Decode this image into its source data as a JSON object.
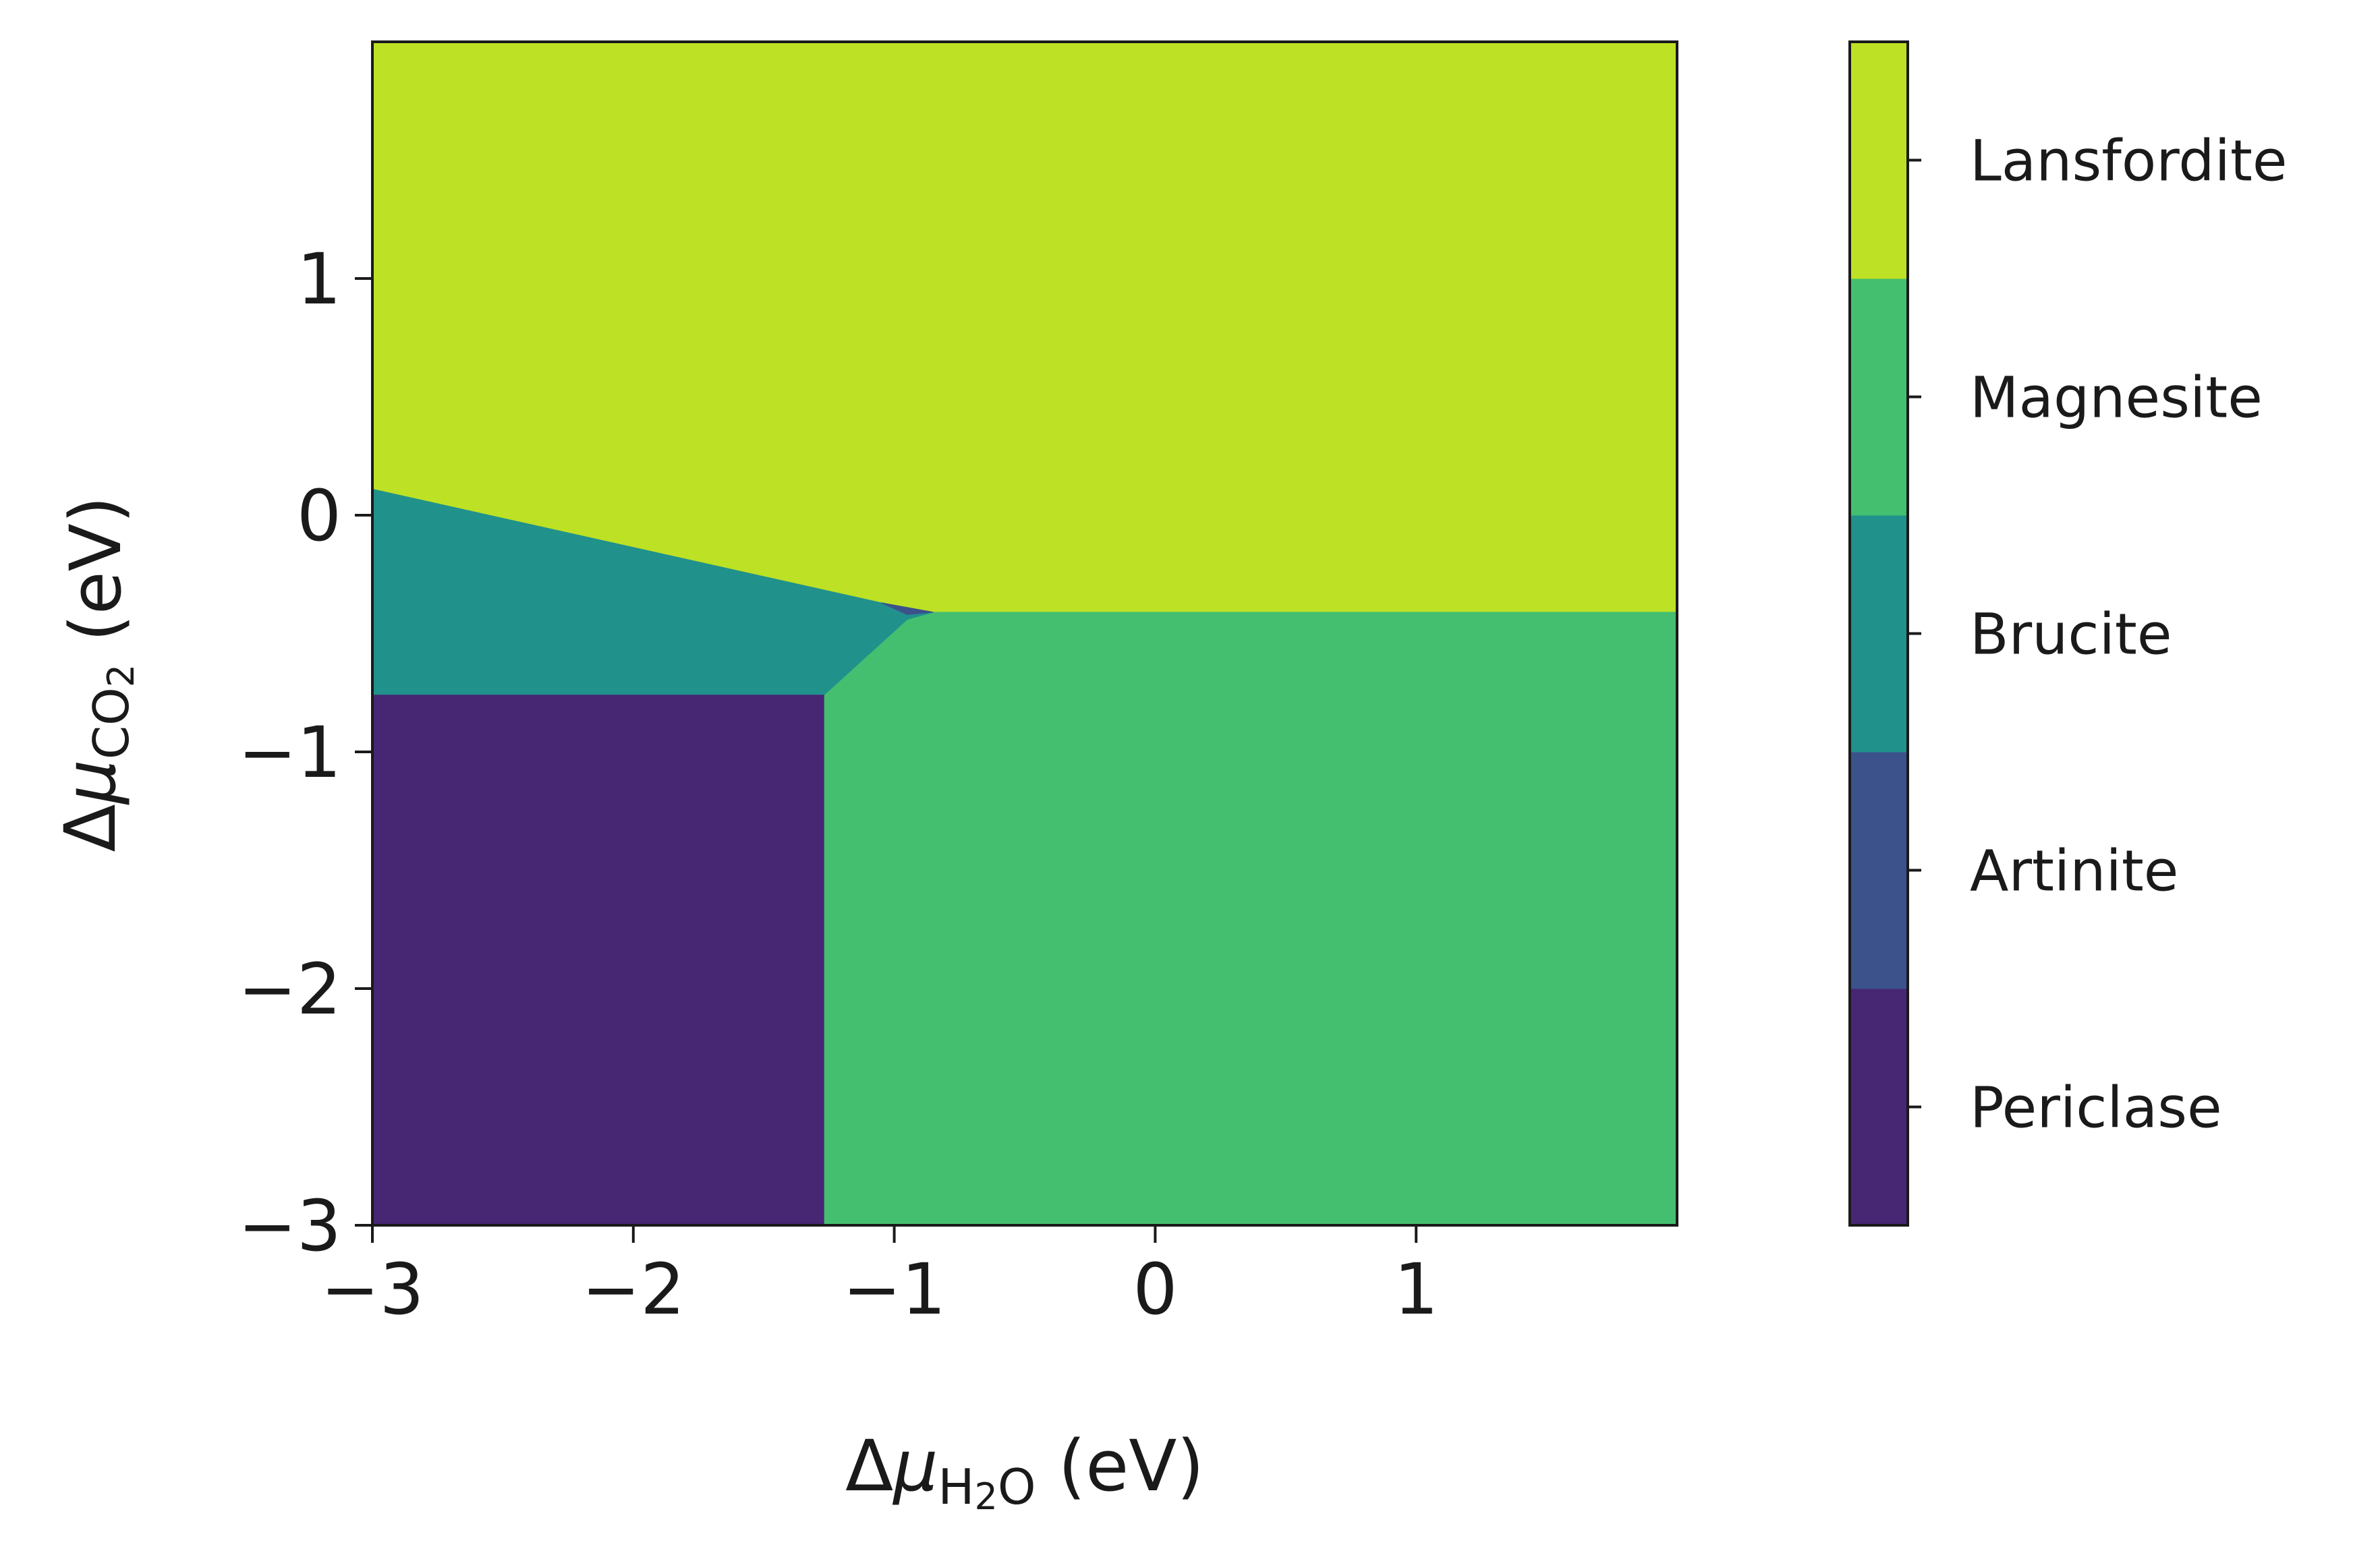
{
  "chart_data": {
    "type": "phase_diagram",
    "xlabel": {
      "prefix": "Δ",
      "symbol": "μ",
      "sub_parts": [
        {
          "t": "H",
          "sub": false
        },
        {
          "t": "2",
          "sub": true
        },
        {
          "t": "O",
          "sub": false
        }
      ],
      "suffix": " (eV)"
    },
    "ylabel": {
      "prefix": "Δ",
      "symbol": "μ",
      "sub_parts": [
        {
          "t": "CO",
          "sub": false
        },
        {
          "t": "2",
          "sub": true
        }
      ],
      "suffix": " (eV)"
    },
    "xlim": [
      -3,
      2
    ],
    "ylim": [
      -3,
      2
    ],
    "xticks": [
      -3,
      -2,
      -1,
      0,
      1
    ],
    "yticks": [
      -3,
      -2,
      -1,
      0,
      1
    ],
    "xtick_labels": [
      "−3",
      "−2",
      "−1",
      "0",
      "1"
    ],
    "ytick_labels": [
      "−3",
      "−2",
      "−1",
      "0",
      "1"
    ],
    "grid": false,
    "regions": [
      {
        "name": "Lansfordite",
        "color": "#bde125",
        "polygon": [
          [
            -3,
            2
          ],
          [
            2,
            2
          ],
          [
            2,
            -0.41
          ],
          [
            -0.85,
            -0.41
          ],
          [
            -1.05,
            -0.37
          ],
          [
            -3,
            0.11
          ]
        ]
      },
      {
        "name": "Magnesite",
        "color": "#44bf70",
        "polygon": [
          [
            -1.27,
            -3
          ],
          [
            2,
            -3
          ],
          [
            2,
            -0.41
          ],
          [
            -0.85,
            -0.41
          ],
          [
            -0.95,
            -0.44
          ],
          [
            -1.27,
            -0.76
          ]
        ]
      },
      {
        "name": "Brucite",
        "color": "#21918c",
        "polygon": [
          [
            -3,
            0.11
          ],
          [
            -1.05,
            -0.37
          ],
          [
            -0.85,
            -0.41
          ],
          [
            -0.95,
            -0.44
          ],
          [
            -1.27,
            -0.76
          ],
          [
            -3,
            -0.76
          ]
        ]
      },
      {
        "name": "Artinite",
        "color": "#3b528b",
        "polygon": [
          [
            -1.05,
            -0.37
          ],
          [
            -0.85,
            -0.41
          ],
          [
            -0.95,
            -0.42
          ]
        ]
      },
      {
        "name": "Periclase",
        "color": "#472673",
        "polygon": [
          [
            -3,
            -3
          ],
          [
            -1.27,
            -3
          ],
          [
            -1.27,
            -0.76
          ],
          [
            -3,
            -0.76
          ]
        ]
      }
    ],
    "colorbar": {
      "entries": [
        {
          "label": "Periclase",
          "color": "#472673"
        },
        {
          "label": "Artinite",
          "color": "#3b528b"
        },
        {
          "label": "Brucite",
          "color": "#21918c"
        },
        {
          "label": "Magnesite",
          "color": "#44bf70"
        },
        {
          "label": "Lansfordite",
          "color": "#bde125"
        }
      ]
    }
  }
}
